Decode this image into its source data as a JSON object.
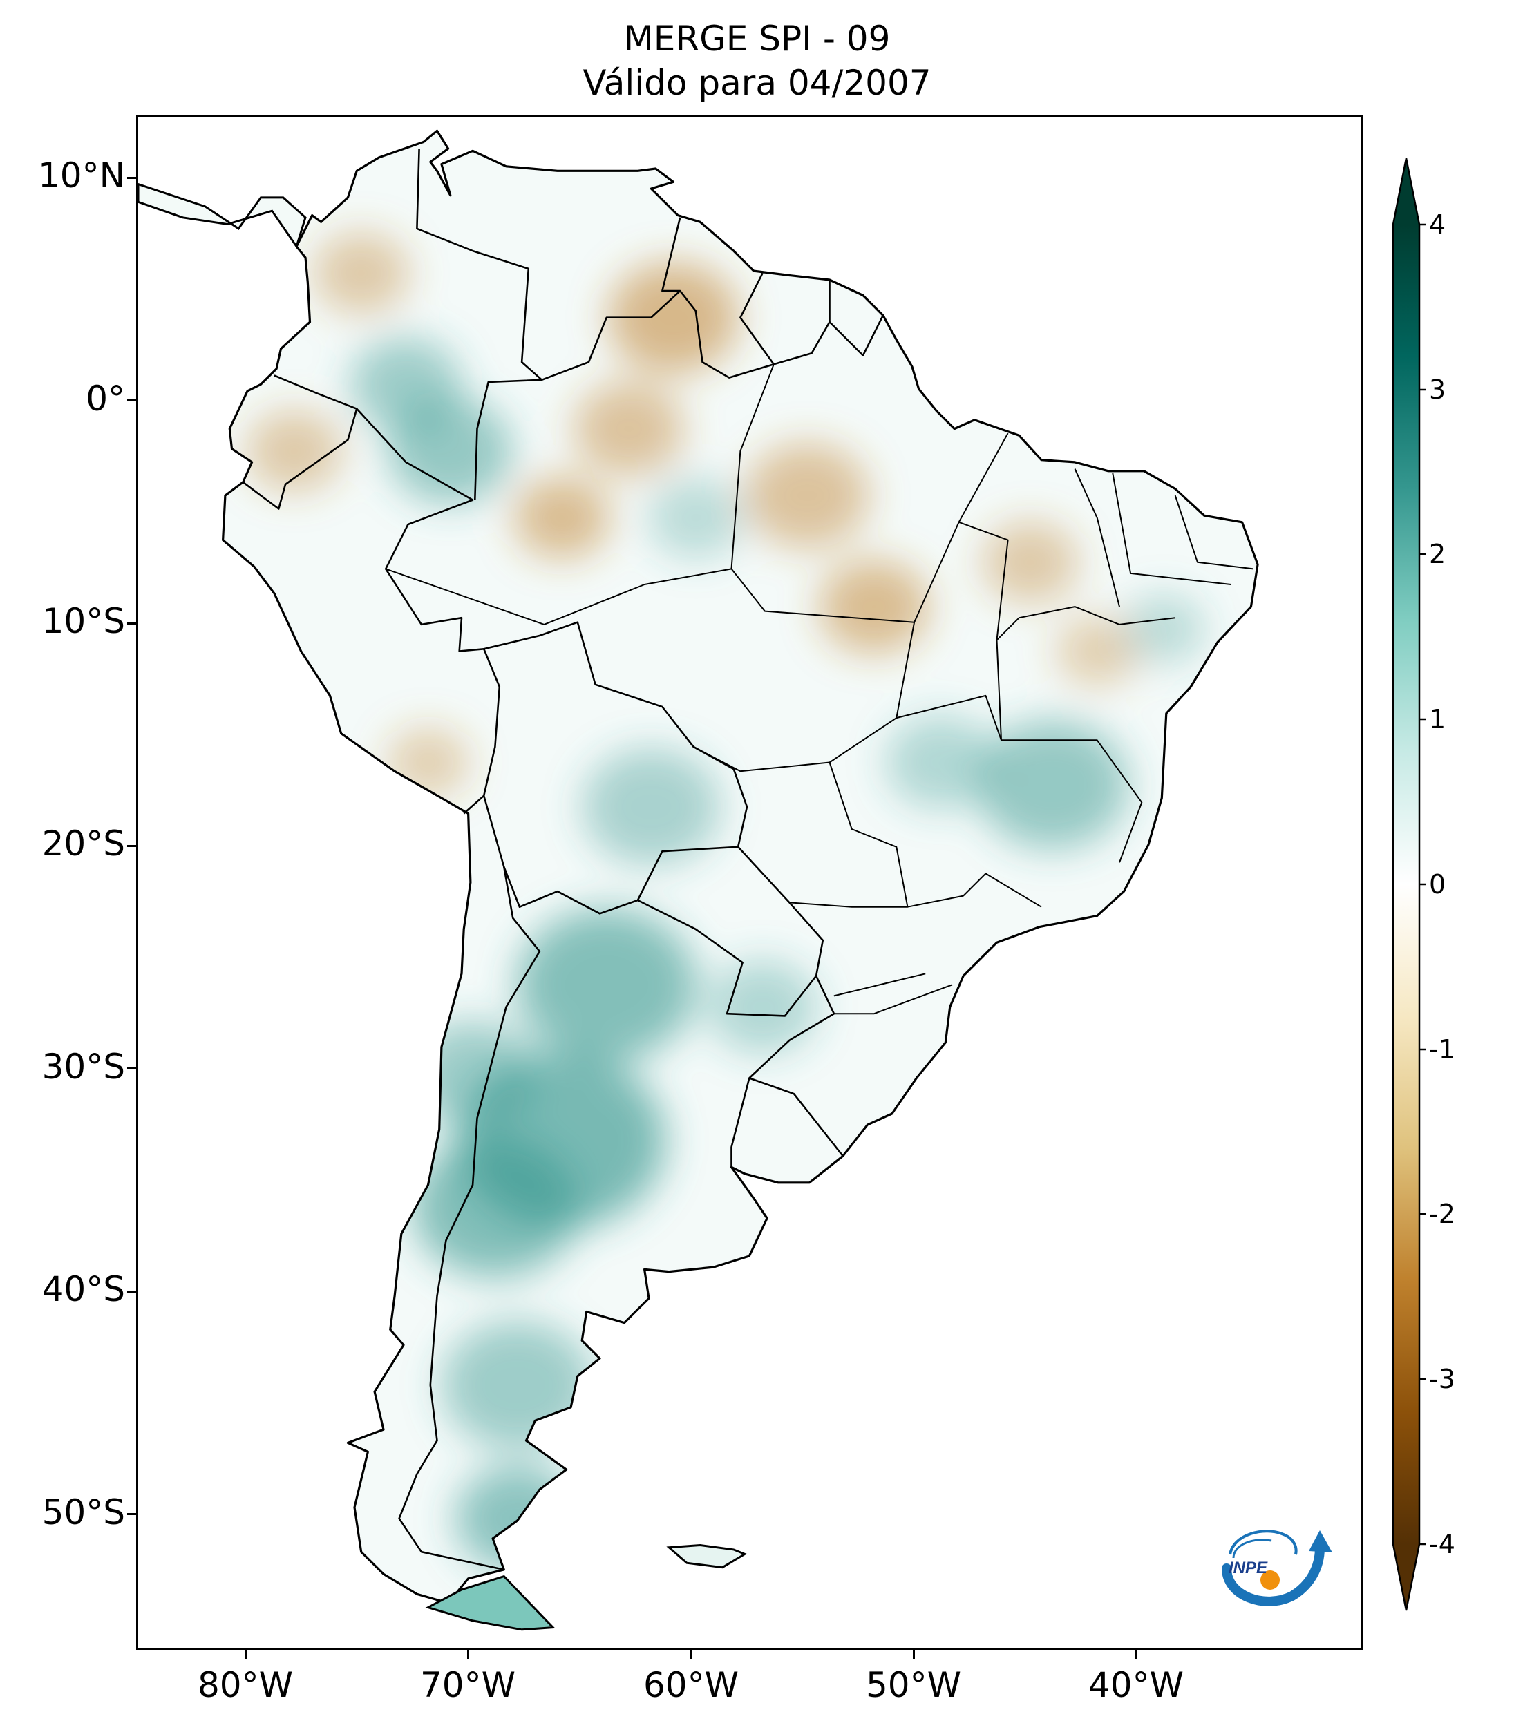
{
  "title": {
    "line1": "MERGE   SPI - 09",
    "line2": "Válido para 04/2007"
  },
  "lat_labels": [
    "10°N",
    "0°",
    "10°S",
    "20°S",
    "30°S",
    "40°S",
    "50°S"
  ],
  "lon_labels": [
    "80°W",
    "70°W",
    "60°W",
    "50°W",
    "40°W"
  ],
  "colorbar": {
    "ticks": [
      "4",
      "3",
      "2",
      "1",
      "0",
      "-1",
      "-2",
      "-3",
      "-4"
    ],
    "colors": [
      "#543005",
      "#8c510a",
      "#bf812d",
      "#dfc27d",
      "#f6e8c3",
      "#ffffff",
      "#c7eae5",
      "#80cdc1",
      "#35978f",
      "#01665e",
      "#003c30"
    ],
    "extend": "both"
  },
  "logo": {
    "text": "INPE"
  },
  "map": {
    "extent": {
      "lon_min": -85,
      "lon_max": -30,
      "lat_min": -56,
      "lat_max": 13
    },
    "dry_color": "#bf812d",
    "wet_color": "#35978f"
  }
}
